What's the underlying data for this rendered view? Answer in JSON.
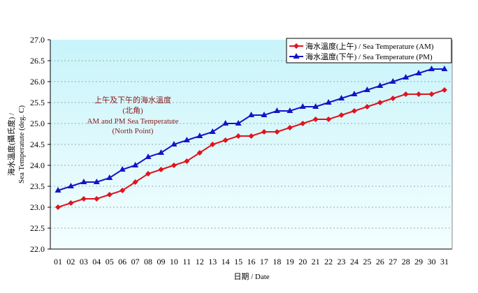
{
  "chart_data": {
    "type": "line",
    "title": "",
    "annotation": [
      "上午及下午的海水溫度",
      "(北角)",
      "AM and PM Sea Temperatute",
      "(North Point)"
    ],
    "xlabel": "日期 / Date",
    "ylabel": [
      "海水溫度(攝氏度) /",
      "Sea Temperatute (deg. C)"
    ],
    "ylim": [
      22.0,
      27.0
    ],
    "yticks": [
      "22.0",
      "22.5",
      "23.0",
      "23.5",
      "24.0",
      "24.5",
      "25.0",
      "25.5",
      "26.0",
      "26.5",
      "27.0"
    ],
    "grid": "horizontal dotted",
    "legend_position": "top-right",
    "categories": [
      "01",
      "02",
      "03",
      "04",
      "05",
      "06",
      "07",
      "08",
      "09",
      "10",
      "11",
      "12",
      "13",
      "14",
      "15",
      "16",
      "17",
      "18",
      "19",
      "20",
      "21",
      "22",
      "23",
      "24",
      "25",
      "26",
      "27",
      "28",
      "29",
      "30",
      "31"
    ],
    "series": [
      {
        "name": "海水溫度(上午) / Sea Temperature (AM)",
        "color": "#e0141e",
        "marker": "diamond",
        "values": [
          23.0,
          23.1,
          23.2,
          23.2,
          23.3,
          23.4,
          23.6,
          23.8,
          23.9,
          24.0,
          24.1,
          24.3,
          24.5,
          24.6,
          24.7,
          24.7,
          24.8,
          24.8,
          24.9,
          25.0,
          25.1,
          25.1,
          25.2,
          25.3,
          25.4,
          25.5,
          25.6,
          25.7,
          25.7,
          25.7,
          25.8
        ]
      },
      {
        "name": "海水溫度(下午) / Sea Temperature (PM)",
        "color": "#1414c8",
        "marker": "triangle",
        "values": [
          23.4,
          23.5,
          23.6,
          23.6,
          23.7,
          23.9,
          24.0,
          24.2,
          24.3,
          24.5,
          24.6,
          24.7,
          24.8,
          25.0,
          25.0,
          25.2,
          25.2,
          25.3,
          25.3,
          25.4,
          25.4,
          25.5,
          25.6,
          25.7,
          25.8,
          25.9,
          26.0,
          26.1,
          26.2,
          26.3,
          26.3
        ]
      }
    ]
  }
}
